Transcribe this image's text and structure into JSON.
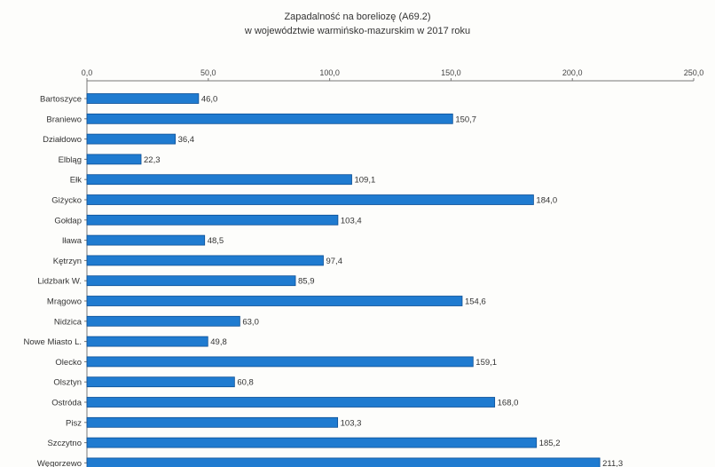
{
  "chart_data": {
    "type": "bar",
    "orientation": "horizontal",
    "title": "Zapadalność na boreliozę (A69.2)",
    "subtitle": "w województwie warmińsko-mazurskim w 2017 roku",
    "xlim": [
      0,
      250
    ],
    "x_ticks": [
      "0,0",
      "50,0",
      "100,0",
      "150,0",
      "200,0",
      "250,0"
    ],
    "x_axis_position": "top",
    "grid": false,
    "bar_color": "#1f7bd0",
    "categories": [
      "Bartoszyce",
      "Braniewo",
      "Działdowo",
      "Elbląg",
      "Ełk",
      "Giżycko",
      "Gołdap",
      "Iława",
      "Kętrzyn",
      "Lidzbark W.",
      "Mrągowo",
      "Nidzica",
      "Nowe Miasto L.",
      "Olecko",
      "Olsztyn",
      "Ostróda",
      "Pisz",
      "Szczytno",
      "Węgorzewo"
    ],
    "values": [
      46.0,
      150.7,
      36.4,
      22.3,
      109.1,
      184.0,
      103.4,
      48.5,
      97.4,
      85.9,
      154.6,
      63.0,
      49.8,
      159.1,
      60.8,
      168.0,
      103.3,
      185.2,
      211.3
    ],
    "value_labels": [
      "46,0",
      "150,7",
      "36,4",
      "22,3",
      "109,1",
      "184,0",
      "103,4",
      "48,5",
      "97,4",
      "85,9",
      "154,6",
      "63,0",
      "49,8",
      "159,1",
      "60,8",
      "168,0",
      "103,3",
      "185,2",
      "211,3"
    ]
  }
}
